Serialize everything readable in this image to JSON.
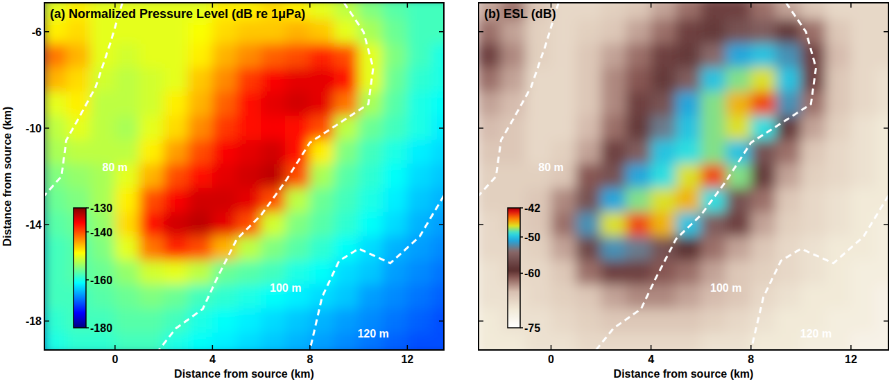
{
  "chart_data": [
    {
      "type": "heatmap",
      "title": "(a) Normalized Pressure Level (dB re 1μPa)",
      "xlabel": "Distance from source (km)",
      "ylabel": "Distance from source (km)",
      "color": "jet",
      "xlim": [
        -2.9,
        13.5
      ],
      "ylim": [
        -19.2,
        -4.8
      ],
      "xticks": [
        0,
        4,
        8,
        12
      ],
      "yticks": [
        -6,
        -10,
        -14,
        -18
      ],
      "x": [
        -2.5,
        -1.5,
        -0.5,
        0.5,
        1.5,
        2.5,
        3.5,
        4.5,
        5.5,
        6.5,
        7.5,
        8.5,
        9.5,
        10.5,
        11.5,
        12.5,
        13.5
      ],
      "y": [
        -5,
        -6,
        -7,
        -8,
        -9,
        -10,
        -11,
        -12,
        -13,
        -14,
        -15,
        -16,
        -17,
        -18,
        -19
      ],
      "values": [
        [
          -150,
          -148,
          -150,
          -150,
          -150,
          -150,
          -150,
          -148,
          -148,
          -147,
          -148,
          -150,
          -152,
          -155,
          -157,
          -158,
          -158
        ],
        [
          -148,
          -147,
          -150,
          -150,
          -150,
          -150,
          -149,
          -147,
          -146,
          -146,
          -145,
          -146,
          -150,
          -153,
          -156,
          -158,
          -158
        ],
        [
          -142,
          -145,
          -150,
          -151,
          -150,
          -150,
          -148,
          -145,
          -143,
          -141,
          -140,
          -138,
          -140,
          -150,
          -155,
          -158,
          -160
        ],
        [
          -145,
          -147,
          -151,
          -152,
          -151,
          -150,
          -146,
          -143,
          -139,
          -136,
          -135,
          -135,
          -137,
          -150,
          -156,
          -159,
          -160
        ],
        [
          -150,
          -148,
          -152,
          -152,
          -151,
          -148,
          -145,
          -141,
          -137,
          -135,
          -134,
          -135,
          -142,
          -153,
          -157,
          -160,
          -161
        ],
        [
          -152,
          -150,
          -152,
          -153,
          -150,
          -147,
          -143,
          -139,
          -137,
          -136,
          -137,
          -140,
          -152,
          -156,
          -158,
          -160,
          -162
        ],
        [
          -153,
          -152,
          -152,
          -152,
          -148,
          -144,
          -140,
          -136,
          -135,
          -134,
          -137,
          -148,
          -155,
          -158,
          -160,
          -162,
          -163
        ],
        [
          -155,
          -154,
          -153,
          -150,
          -145,
          -140,
          -137,
          -135,
          -134,
          -133,
          -140,
          -153,
          -157,
          -159,
          -161,
          -163,
          -164
        ],
        [
          -156,
          -155,
          -153,
          -148,
          -140,
          -136,
          -134,
          -134,
          -135,
          -140,
          -152,
          -156,
          -158,
          -160,
          -162,
          -164,
          -165
        ],
        [
          -157,
          -156,
          -154,
          -147,
          -137,
          -134,
          -133,
          -135,
          -140,
          -151,
          -155,
          -157,
          -159,
          -161,
          -163,
          -165,
          -166
        ],
        [
          -158,
          -157,
          -155,
          -150,
          -142,
          -138,
          -140,
          -145,
          -152,
          -155,
          -157,
          -159,
          -161,
          -163,
          -165,
          -166,
          -167
        ],
        [
          -158,
          -157,
          -156,
          -154,
          -151,
          -150,
          -152,
          -156,
          -157,
          -158,
          -160,
          -161,
          -163,
          -164,
          -166,
          -167,
          -168
        ],
        [
          -158,
          -158,
          -157,
          -156,
          -155,
          -156,
          -158,
          -159,
          -160,
          -161,
          -162,
          -163,
          -164,
          -166,
          -167,
          -168,
          -169
        ],
        [
          -159,
          -158,
          -158,
          -157,
          -157,
          -158,
          -160,
          -161,
          -162,
          -163,
          -164,
          -165,
          -166,
          -167,
          -168,
          -169,
          -170
        ],
        [
          -160,
          -159,
          -159,
          -158,
          -158,
          -160,
          -161,
          -162,
          -163,
          -164,
          -165,
          -166,
          -167,
          -168,
          -169,
          -170,
          -170
        ]
      ],
      "colorbar": {
        "range": [
          -180,
          -130
        ],
        "ticks": [
          -130,
          -140,
          -160,
          -180
        ]
      },
      "contours": [
        {
          "label": "80 m",
          "x": [
            0.3,
            -0.2,
            -0.8,
            -1.5,
            -2.0,
            -2.2,
            -2.9
          ],
          "y": [
            -4.8,
            -6.5,
            -8.3,
            -9.6,
            -10.5,
            -12.0,
            -12.8
          ],
          "label_x": 0.0,
          "label_y": -11.6
        },
        {
          "label": "100 m",
          "x": [
            9.4,
            10.2,
            10.6,
            10.4,
            9.2,
            8.0,
            7.0,
            6.0,
            5.0,
            4.2,
            3.6,
            2.5,
            1.8
          ],
          "y": [
            -4.8,
            -6.0,
            -7.5,
            -9.0,
            -9.8,
            -10.6,
            -12.2,
            -13.6,
            -14.6,
            -16.2,
            -17.5,
            -18.3,
            -19.2
          ],
          "label_x": 7.0,
          "label_y": -16.6
        },
        {
          "label": "120 m",
          "x": [
            13.5,
            12.5,
            11.3,
            10.0,
            9.2,
            8.5,
            8.0
          ],
          "y": [
            -12.8,
            -14.5,
            -15.6,
            -15.0,
            -15.5,
            -17.0,
            -19.2
          ],
          "label_x": 10.6,
          "label_y": -18.5
        }
      ]
    },
    {
      "type": "heatmap",
      "title": "(b) ESL (dB)",
      "xlabel": "Distance from source (km)",
      "color": "esl",
      "tick_labels": "x",
      "xlim": [
        -2.9,
        13.5
      ],
      "ylim": [
        -19.2,
        -4.8
      ],
      "xticks": [
        0,
        4,
        8,
        12
      ],
      "yticks": [
        -6,
        -10,
        -14,
        -18
      ],
      "x": [
        -2.5,
        -1.5,
        -0.5,
        0.5,
        1.5,
        2.5,
        3.5,
        4.5,
        5.5,
        6.5,
        7.5,
        8.5,
        9.5,
        10.5,
        11.5,
        12.5,
        13.5
      ],
      "y": [
        -5,
        -6,
        -7,
        -8,
        -9,
        -10,
        -11,
        -12,
        -13,
        -14,
        -15,
        -16,
        -17,
        -18,
        -19
      ],
      "values": [
        [
          -64,
          -62,
          -66,
          -68,
          -68,
          -67,
          -66,
          -64,
          -62,
          -60,
          -60,
          -62,
          -64,
          -66,
          -68,
          -68,
          -68
        ],
        [
          -62,
          -64,
          -67,
          -68,
          -67,
          -66,
          -64,
          -62,
          -60,
          -58,
          -56,
          -55,
          -58,
          -62,
          -66,
          -68,
          -68
        ],
        [
          -60,
          -63,
          -67,
          -68,
          -66,
          -64,
          -62,
          -60,
          -58,
          -54,
          -51,
          -50,
          -52,
          -60,
          -65,
          -68,
          -68
        ],
        [
          -62,
          -64,
          -68,
          -68,
          -66,
          -63,
          -61,
          -58,
          -55,
          -50,
          -48,
          -47,
          -50,
          -60,
          -66,
          -68,
          -69
        ],
        [
          -64,
          -65,
          -68,
          -68,
          -66,
          -63,
          -60,
          -56,
          -51,
          -48,
          -46,
          -44,
          -52,
          -62,
          -66,
          -68,
          -69
        ],
        [
          -65,
          -66,
          -68,
          -68,
          -65,
          -62,
          -58,
          -53,
          -50,
          -48,
          -47,
          -49,
          -58,
          -64,
          -67,
          -69,
          -70
        ],
        [
          -66,
          -66,
          -68,
          -67,
          -64,
          -60,
          -55,
          -50,
          -49,
          -48,
          -50,
          -56,
          -62,
          -66,
          -68,
          -69,
          -70
        ],
        [
          -67,
          -67,
          -67,
          -66,
          -61,
          -56,
          -51,
          -49,
          -47,
          -44,
          -48,
          -58,
          -64,
          -67,
          -68,
          -69,
          -70
        ],
        [
          -67,
          -67,
          -66,
          -63,
          -56,
          -51,
          -48,
          -47,
          -46,
          -49,
          -56,
          -62,
          -66,
          -68,
          -69,
          -70,
          -70
        ],
        [
          -68,
          -67,
          -66,
          -62,
          -52,
          -47,
          -44,
          -46,
          -50,
          -55,
          -60,
          -64,
          -67,
          -68,
          -69,
          -70,
          -71
        ],
        [
          -68,
          -68,
          -67,
          -64,
          -57,
          -52,
          -53,
          -56,
          -59,
          -62,
          -64,
          -66,
          -68,
          -69,
          -70,
          -70,
          -71
        ],
        [
          -69,
          -68,
          -68,
          -66,
          -62,
          -60,
          -60,
          -61,
          -62,
          -64,
          -66,
          -67,
          -68,
          -69,
          -70,
          -71,
          -71
        ],
        [
          -69,
          -69,
          -68,
          -67,
          -66,
          -64,
          -63,
          -63,
          -64,
          -65,
          -66,
          -68,
          -69,
          -70,
          -70,
          -71,
          -72
        ],
        [
          -70,
          -69,
          -69,
          -68,
          -67,
          -66,
          -66,
          -66,
          -66,
          -67,
          -68,
          -69,
          -70,
          -70,
          -71,
          -71,
          -72
        ],
        [
          -70,
          -70,
          -69,
          -69,
          -68,
          -68,
          -68,
          -68,
          -68,
          -69,
          -69,
          -70,
          -70,
          -71,
          -71,
          -72,
          -72
        ]
      ],
      "colorbar": {
        "range": [
          -75,
          -42
        ],
        "ticks": [
          -42,
          -50,
          -60,
          -75
        ]
      },
      "contours": [
        {
          "label": "80 m",
          "x": [
            0.3,
            -0.2,
            -0.8,
            -1.5,
            -2.0,
            -2.2,
            -2.9
          ],
          "y": [
            -4.8,
            -6.5,
            -8.3,
            -9.6,
            -10.5,
            -12.0,
            -12.8
          ],
          "label_x": 0.0,
          "label_y": -11.6
        },
        {
          "label": "100 m",
          "x": [
            9.4,
            10.2,
            10.6,
            10.4,
            9.2,
            8.0,
            7.0,
            6.0,
            5.0,
            4.2,
            3.6,
            2.5,
            1.8
          ],
          "y": [
            -4.8,
            -6.0,
            -7.5,
            -9.0,
            -9.8,
            -10.6,
            -12.2,
            -13.6,
            -14.6,
            -16.2,
            -17.5,
            -18.3,
            -19.2
          ],
          "label_x": 7.0,
          "label_y": -16.6
        },
        {
          "label": "120 m",
          "x": [
            13.5,
            12.5,
            11.3,
            10.0,
            9.2,
            8.5,
            8.0
          ],
          "y": [
            -12.8,
            -14.5,
            -15.6,
            -15.0,
            -15.5,
            -17.0,
            -19.2
          ],
          "label_x": 10.6,
          "label_y": -18.5
        }
      ]
    }
  ]
}
